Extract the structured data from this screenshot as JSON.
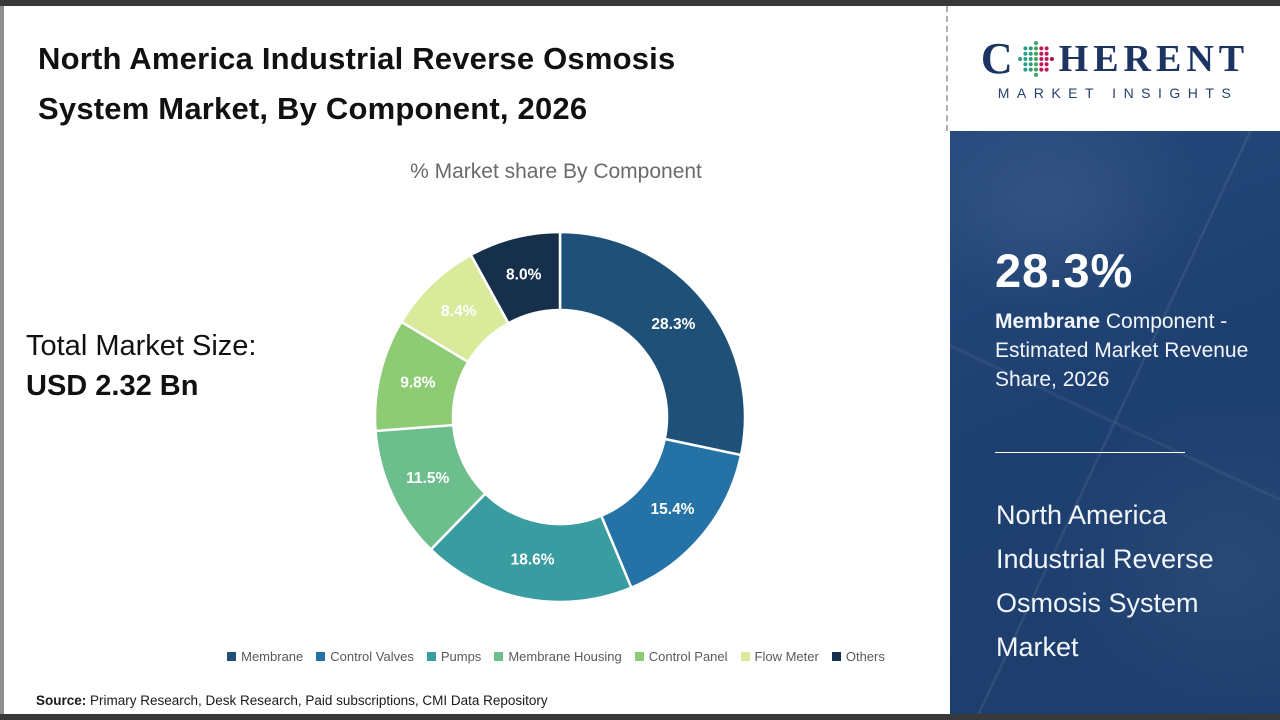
{
  "header": {
    "title": "North America Industrial Reverse Osmosis\nSystem Market, By Component, 2026",
    "subtitle": "% Market share By Component"
  },
  "logo": {
    "prefix": "C",
    "suffix": "HERENT",
    "subtext": "MARKET INSIGHTS",
    "icon": "dotted-globe-icon",
    "text_color": "#1C3461",
    "globe_dot_colors": [
      "#2A9D8F",
      "#2A9D8F",
      "#2F9E77",
      "#3DA35D",
      "#C2185B",
      "#C2185B",
      "#A4133C"
    ]
  },
  "total_market": {
    "label": "Total Market Size:",
    "value": "USD 2.32 Bn"
  },
  "chart_data": {
    "type": "pie",
    "subtype": "donut",
    "title": "% Market share By Component",
    "categories": [
      "Membrane",
      "Control Valves",
      "Pumps",
      "Membrane Housing",
      "Control Panel",
      "Flow Meter",
      "Others"
    ],
    "values": [
      28.3,
      15.4,
      18.6,
      11.5,
      9.8,
      8.4,
      8.0
    ],
    "colors": [
      "#1F5078",
      "#2573A6",
      "#399CA1",
      "#6CBF8D",
      "#8DCC74",
      "#D9EB9B",
      "#16304C"
    ],
    "unit": "%",
    "start_angle_deg": 0,
    "direction": "clockwise",
    "label_color": "#ffffff",
    "legend_position": "bottom"
  },
  "sidebar": {
    "stat_value": "28.3%",
    "stat_desc_bold": "Membrane",
    "stat_desc_rest": " Component - Estimated Market Revenue Share, 2026",
    "market_name": "North America Industrial Reverse Osmosis System Market",
    "bg_color": "#1E4070"
  },
  "source": {
    "label": "Source:",
    "text": " Primary Research, Desk Research, Paid subscriptions, CMI Data Repository"
  }
}
